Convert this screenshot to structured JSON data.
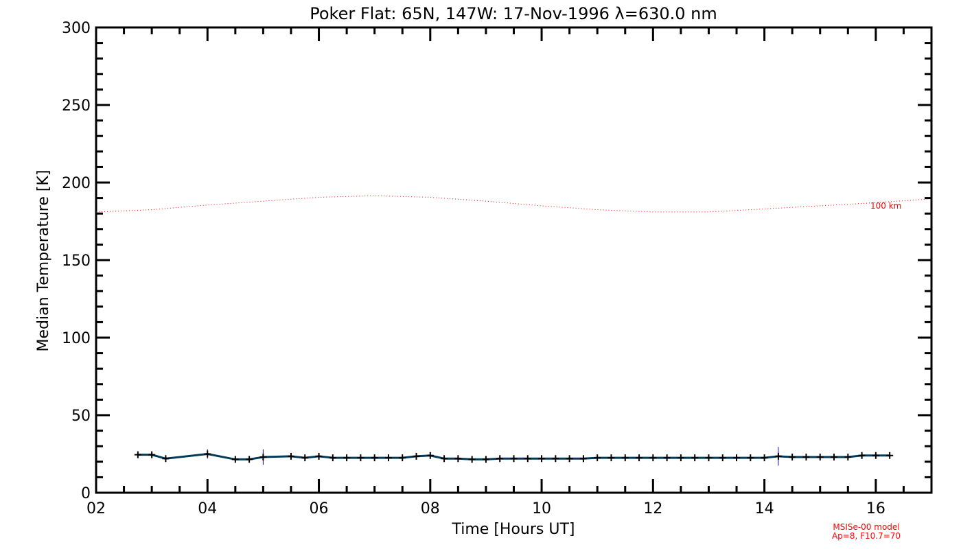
{
  "chart_data": {
    "type": "line",
    "title": "Poker Flat: 65N, 147W: 17-Nov-1996 λ=630.0 nm",
    "xlabel": "Time [Hours UT]",
    "ylabel": "Median Temperature [K]",
    "xlim": [
      2,
      17
    ],
    "ylim": [
      0,
      300
    ],
    "xticks": [
      2,
      4,
      6,
      8,
      10,
      12,
      14,
      16
    ],
    "xtick_labels": [
      "02",
      "04",
      "06",
      "08",
      "10",
      "12",
      "14",
      "16"
    ],
    "yticks": [
      0,
      50,
      100,
      150,
      200,
      250,
      300
    ],
    "ytick_labels": [
      "0",
      "50",
      "100",
      "150",
      "200",
      "250",
      "300"
    ],
    "grid": false,
    "series": [
      {
        "name": "Median temperature",
        "color": "#003c5a",
        "errorbar_color": "#0000ff",
        "x": [
          2.75,
          3.0,
          3.25,
          4.0,
          4.5,
          4.75,
          5.0,
          5.5,
          5.75,
          6.0,
          6.25,
          6.5,
          6.75,
          7.0,
          7.25,
          7.5,
          7.75,
          8.0,
          8.25,
          8.5,
          8.75,
          9.0,
          9.25,
          9.5,
          9.75,
          10.0,
          10.25,
          10.5,
          10.75,
          11.0,
          11.25,
          11.5,
          11.75,
          12.0,
          12.25,
          12.5,
          12.75,
          13.0,
          13.25,
          13.5,
          13.75,
          14.0,
          14.25,
          14.5,
          14.75,
          15.0,
          15.25,
          15.5,
          15.75,
          16.0,
          16.25
        ],
        "y": [
          24.5,
          24.5,
          22,
          25,
          21.5,
          21.5,
          23,
          23.5,
          22.5,
          23.5,
          22.5,
          22.5,
          22.5,
          22.5,
          22.5,
          22.5,
          23.5,
          24,
          22,
          22,
          21.5,
          21.5,
          22,
          22,
          22,
          22,
          22,
          22,
          22,
          22.5,
          22.5,
          22.5,
          22.5,
          22.5,
          22.5,
          22.5,
          22.5,
          22.5,
          22.5,
          22.5,
          22.5,
          22.5,
          23.5,
          23,
          23,
          23,
          23,
          23,
          24,
          24,
          24
        ],
        "err": [
          2,
          2,
          1,
          3,
          1.5,
          2,
          5,
          1.5,
          1,
          1.5,
          1,
          1,
          1,
          1.5,
          1,
          1,
          1,
          1.5,
          1,
          1,
          1,
          1,
          1,
          1,
          1,
          1,
          1,
          1,
          1,
          1,
          1,
          1,
          1,
          1,
          1,
          1,
          1,
          1,
          1,
          1,
          1,
          1,
          6,
          2,
          2,
          2,
          2,
          1.5,
          2,
          2,
          2
        ]
      },
      {
        "name": "100 km",
        "color": "#ff0000",
        "style": "dotted",
        "x": [
          2,
          3,
          4,
          5,
          6,
          7,
          8,
          9,
          10,
          11,
          12,
          13,
          14,
          15,
          16,
          17
        ],
        "y": [
          181,
          182.5,
          185.5,
          188,
          190.5,
          191.5,
          190.5,
          188,
          185,
          182.5,
          181,
          181,
          183,
          185,
          187,
          189.5
        ]
      }
    ],
    "annotations": [
      "100 km",
      "MSISe-00 model",
      "Ap=8, F10.7=70"
    ]
  }
}
